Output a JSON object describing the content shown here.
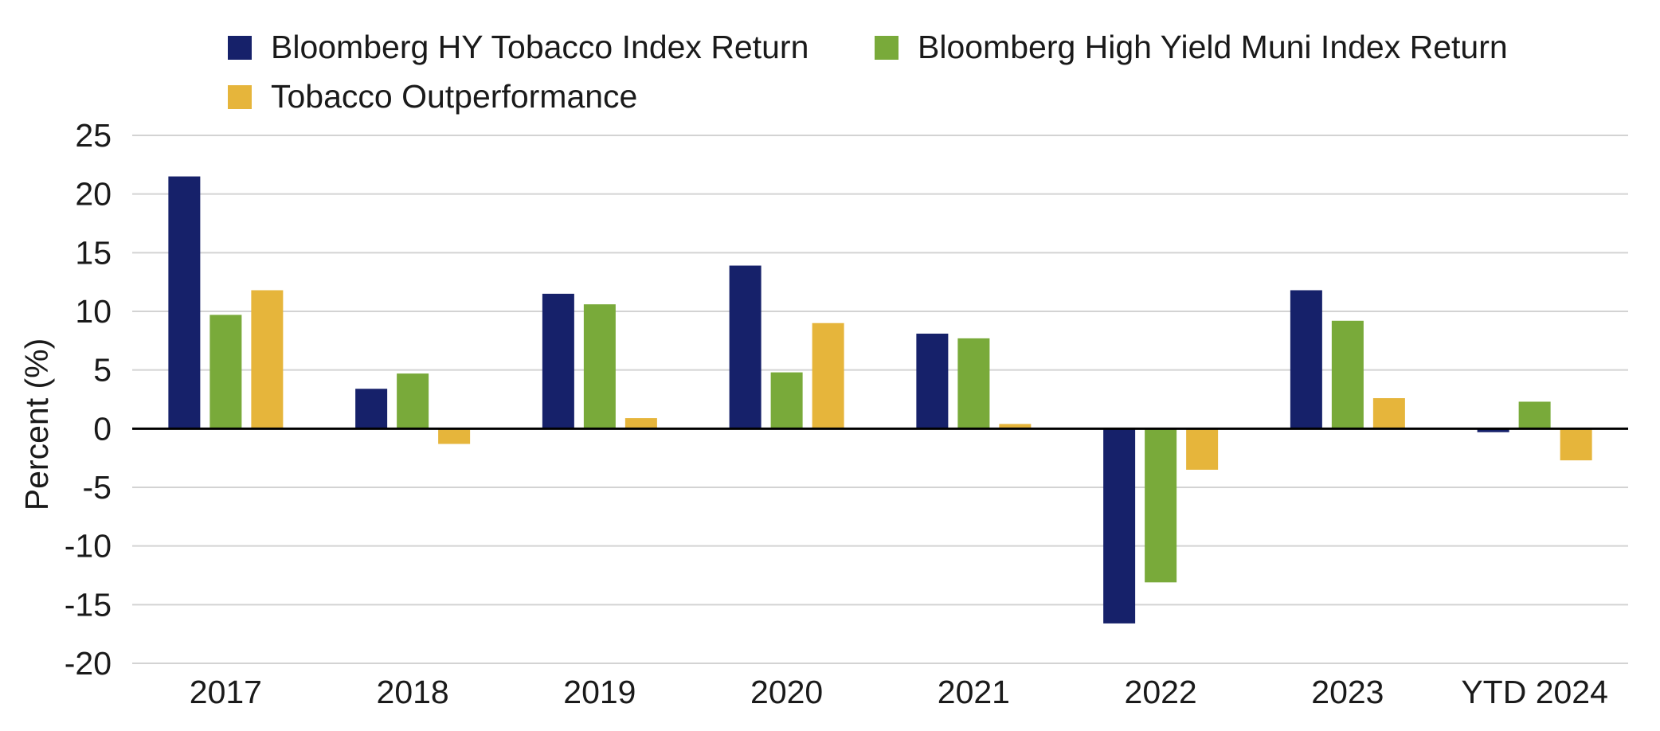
{
  "chart_data": {
    "type": "bar",
    "title": "",
    "xlabel": "",
    "ylabel": "Percent (%)",
    "ylim": [
      -20,
      25
    ],
    "yticks": [
      25,
      20,
      15,
      10,
      5,
      0,
      -5,
      -10,
      -15,
      -20
    ],
    "grid": true,
    "legend_position": "top-left",
    "categories": [
      "2017",
      "2018",
      "2019",
      "2020",
      "2021",
      "2022",
      "2023",
      "YTD 2024"
    ],
    "series": [
      {
        "name": "Bloomberg HY Tobacco Index Return",
        "color": "#16216a",
        "values": [
          21.5,
          3.4,
          11.5,
          13.9,
          8.1,
          -16.6,
          11.8,
          -0.3
        ]
      },
      {
        "name": "Bloomberg High Yield Muni Index Return",
        "color": "#79aa3a",
        "values": [
          9.7,
          4.7,
          10.6,
          4.8,
          7.7,
          -13.1,
          9.2,
          2.3
        ]
      },
      {
        "name": "Tobacco Outperformance",
        "color": "#e6b53b",
        "values": [
          11.8,
          -1.3,
          0.9,
          9.0,
          0.4,
          -3.5,
          2.6,
          -2.7
        ]
      }
    ]
  }
}
